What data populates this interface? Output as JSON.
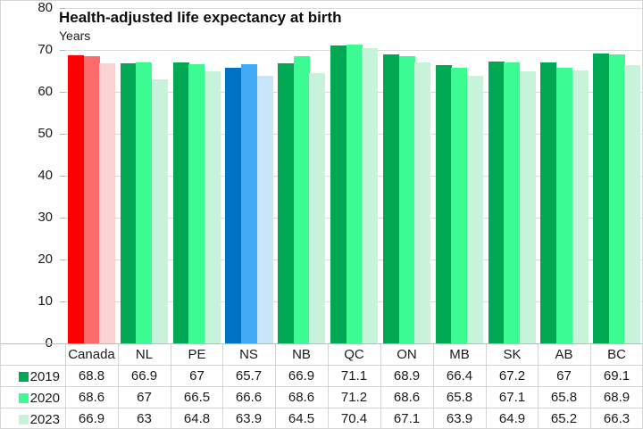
{
  "chart_data": {
    "type": "bar",
    "title": "Health-adjusted life expectancy at birth",
    "ylabel": "Years",
    "xlabel": "",
    "ylim": [
      0,
      80
    ],
    "yticks": [
      0,
      10,
      20,
      30,
      40,
      50,
      60,
      70,
      80
    ],
    "grid": "horizontal gridlines every 10 units",
    "legend_position": "left column of data table below chart",
    "categories": [
      "Canada",
      "NL",
      "PE",
      "NS",
      "NB",
      "QC",
      "ON",
      "MB",
      "SK",
      "AB",
      "BC"
    ],
    "series": [
      {
        "name": "2019",
        "values": [
          68.8,
          66.9,
          67,
          65.7,
          66.9,
          71.1,
          68.9,
          66.4,
          67.2,
          67,
          69.1
        ]
      },
      {
        "name": "2020",
        "values": [
          68.6,
          67,
          66.5,
          66.6,
          68.6,
          71.2,
          68.6,
          65.8,
          67.1,
          65.8,
          68.9
        ]
      },
      {
        "name": "2023",
        "values": [
          66.9,
          63,
          64.8,
          63.9,
          64.5,
          70.4,
          67.1,
          63.9,
          64.9,
          65.2,
          66.3
        ]
      }
    ],
    "palette": {
      "default": [
        "#00A854",
        "#3BFB92",
        "#C8F3DB"
      ],
      "Canada": [
        "#FF0000",
        "#FA6B6B",
        "#FBD2D2"
      ],
      "NS": [
        "#0072C6",
        "#42AAF7",
        "#C7E4F8"
      ]
    }
  }
}
